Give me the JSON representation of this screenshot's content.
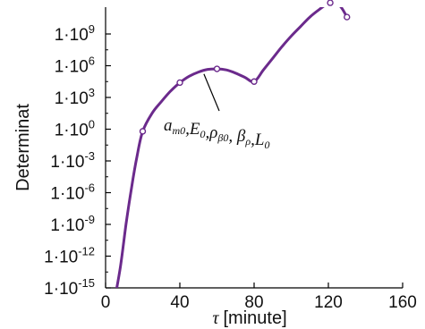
{
  "chart_data": {
    "type": "line",
    "title": "",
    "xlabel_symbol": "τ",
    "xlabel_unit": "[minute]",
    "ylabel": "Determinat",
    "xlim": [
      0,
      160
    ],
    "ylim_log10": [
      -15,
      11
    ],
    "y_scale": "log",
    "x_ticks": [
      0,
      40,
      80,
      120,
      160
    ],
    "y_ticks": [
      {
        "exp": 9,
        "label": "1·10^9"
      },
      {
        "exp": 6,
        "label": "1·10^6"
      },
      {
        "exp": 3,
        "label": "1·10^3"
      },
      {
        "exp": 0,
        "label": "1·10^0"
      },
      {
        "exp": -3,
        "label": "1·10^-3"
      },
      {
        "exp": -6,
        "label": "1·10^-6"
      },
      {
        "exp": -9,
        "label": "1·10^-9"
      },
      {
        "exp": -12,
        "label": "1·10^-12"
      },
      {
        "exp": -15,
        "label": "1·10^-15"
      }
    ],
    "series": [
      {
        "color": "#6b2a8c",
        "curve_log10": [
          [
            5,
            -16
          ],
          [
            8,
            -13
          ],
          [
            11,
            -9
          ],
          [
            14,
            -5.5
          ],
          [
            17,
            -2.5
          ],
          [
            20,
            -0.2
          ],
          [
            25,
            1.5
          ],
          [
            30,
            2.6
          ],
          [
            35,
            3.6
          ],
          [
            40,
            4.4
          ],
          [
            45,
            5.0
          ],
          [
            50,
            5.4
          ],
          [
            55,
            5.65
          ],
          [
            60,
            5.7
          ],
          [
            65,
            5.6
          ],
          [
            70,
            5.3
          ],
          [
            75,
            4.9
          ],
          [
            80,
            4.5
          ],
          [
            85,
            5.6
          ],
          [
            90,
            6.7
          ],
          [
            95,
            7.8
          ],
          [
            100,
            8.8
          ],
          [
            105,
            9.7
          ],
          [
            110,
            10.6
          ],
          [
            115,
            11.3
          ],
          [
            120,
            11.9
          ],
          [
            124,
            11.95
          ],
          [
            127,
            11.5
          ],
          [
            130,
            10.6
          ]
        ],
        "markers": [
          {
            "x": 20,
            "log10_y": -0.2
          },
          {
            "x": 40,
            "log10_y": 4.4
          },
          {
            "x": 60,
            "log10_y": 5.7
          },
          {
            "x": 80,
            "log10_y": 4.5
          },
          {
            "x": 121,
            "log10_y": 11.95
          },
          {
            "x": 130,
            "log10_y": 10.6
          }
        ]
      }
    ],
    "annotation": {
      "text": "a_{m0},E_0,ρ_{β0}, β_ρ,L_0",
      "points_to": {
        "x": 52,
        "log10_y": 5.3
      }
    },
    "grid": false,
    "legend": "none"
  }
}
